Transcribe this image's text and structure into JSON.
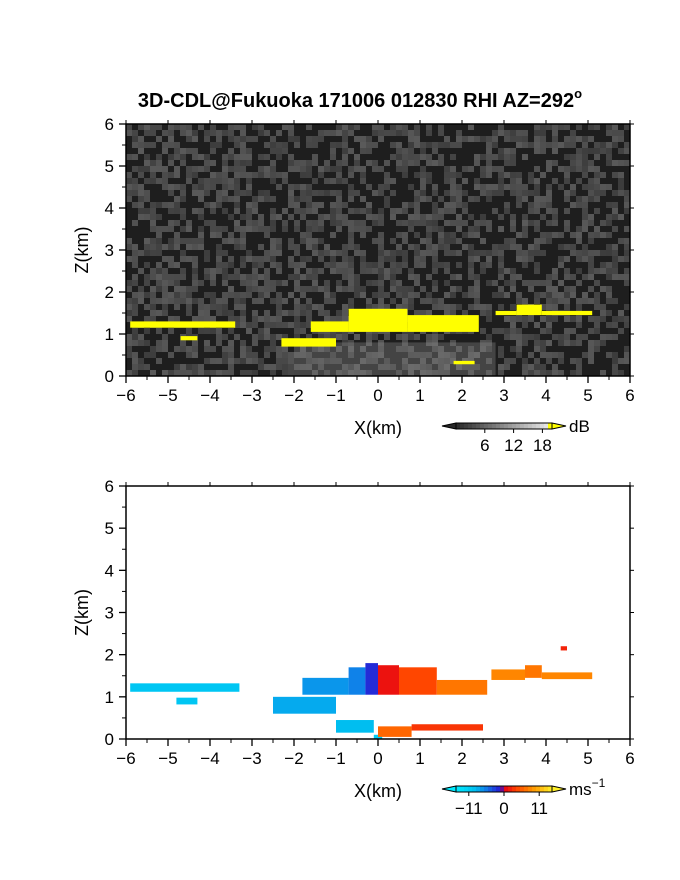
{
  "title": "3D-CDL@Fukuoka 171006 012830 RHI AZ=292",
  "title_superscript": "o",
  "chart_data": [
    {
      "type": "heatmap",
      "name": "reflectivity",
      "xlabel": "X(km)",
      "ylabel": "Z(km)",
      "xlim": [
        -6,
        6
      ],
      "ylim": [
        0,
        6
      ],
      "xticks": [
        -6,
        -5,
        -4,
        -3,
        -2,
        -1,
        0,
        1,
        2,
        3,
        4,
        5,
        6
      ],
      "yticks": [
        0,
        1,
        2,
        3,
        4,
        5,
        6
      ],
      "background": "noise",
      "colorbar": {
        "unit": "dB",
        "ticks": [
          "6",
          "12",
          "18"
        ],
        "range": [
          0,
          20
        ]
      },
      "echoes": [
        {
          "x0": -5.9,
          "x1": -3.4,
          "z0": 1.15,
          "z1": 1.3,
          "value": 20
        },
        {
          "x0": -4.7,
          "x1": -4.3,
          "z0": 0.85,
          "z1": 0.95,
          "value": 20
        },
        {
          "x0": -2.3,
          "x1": -1.0,
          "z0": 0.7,
          "z1": 0.9,
          "value": 20
        },
        {
          "x0": -1.6,
          "x1": -0.7,
          "z0": 1.05,
          "z1": 1.3,
          "value": 20
        },
        {
          "x0": -0.7,
          "x1": 0.7,
          "z0": 1.05,
          "z1": 1.6,
          "value": 20
        },
        {
          "x0": 0.7,
          "x1": 2.4,
          "z0": 1.05,
          "z1": 1.45,
          "value": 20
        },
        {
          "x0": 1.8,
          "x1": 2.3,
          "z0": 0.28,
          "z1": 0.36,
          "value": 20
        },
        {
          "x0": 2.8,
          "x1": 3.3,
          "z0": 1.45,
          "z1": 1.55,
          "value": 20
        },
        {
          "x0": 3.3,
          "x1": 3.9,
          "z0": 1.45,
          "z1": 1.7,
          "value": 20
        },
        {
          "x0": 3.9,
          "x1": 5.1,
          "z0": 1.45,
          "z1": 1.55,
          "value": 20
        }
      ]
    },
    {
      "type": "heatmap",
      "name": "doppler-velocity",
      "xlabel": "X(km)",
      "ylabel": "Z(km)",
      "xlim": [
        -6,
        6
      ],
      "ylim": [
        0,
        6
      ],
      "xticks": [
        -6,
        -5,
        -4,
        -3,
        -2,
        -1,
        0,
        1,
        2,
        3,
        4,
        5,
        6
      ],
      "yticks": [
        0,
        1,
        2,
        3,
        4,
        5,
        6
      ],
      "colorbar": {
        "unit": "ms",
        "unit_exponent": "−1",
        "ticks": [
          "−11",
          "0",
          "11"
        ],
        "range": [
          -15,
          15
        ]
      },
      "echoes": [
        {
          "x0": -5.9,
          "x1": -3.3,
          "z0": 1.12,
          "z1": 1.32,
          "value": -10
        },
        {
          "x0": -4.8,
          "x1": -4.3,
          "z0": 0.82,
          "z1": 0.98,
          "value": -10
        },
        {
          "x0": -2.5,
          "x1": -1.0,
          "z0": 0.6,
          "z1": 1.0,
          "value": -8
        },
        {
          "x0": -1.8,
          "x1": -0.7,
          "z0": 1.05,
          "z1": 1.45,
          "value": -7
        },
        {
          "x0": -0.7,
          "x1": -0.3,
          "z0": 1.05,
          "z1": 1.7,
          "value": -6
        },
        {
          "x0": -0.3,
          "x1": 0.0,
          "z0": 1.05,
          "z1": 1.8,
          "value": -2
        },
        {
          "x0": 0.0,
          "x1": 0.5,
          "z0": 1.05,
          "z1": 1.75,
          "value": 1
        },
        {
          "x0": 0.5,
          "x1": 1.4,
          "z0": 1.05,
          "z1": 1.7,
          "value": 4
        },
        {
          "x0": 1.4,
          "x1": 2.6,
          "z0": 1.05,
          "z1": 1.4,
          "value": 7
        },
        {
          "x0": -1.0,
          "x1": -0.1,
          "z0": 0.15,
          "z1": 0.45,
          "value": -9
        },
        {
          "x0": -0.1,
          "x1": 0.1,
          "z0": 0.0,
          "z1": 0.1,
          "value": -11
        },
        {
          "x0": 0.0,
          "x1": 0.8,
          "z0": 0.05,
          "z1": 0.3,
          "value": 6
        },
        {
          "x0": 0.8,
          "x1": 2.5,
          "z0": 0.2,
          "z1": 0.35,
          "value": 3
        },
        {
          "x0": 2.7,
          "x1": 3.5,
          "z0": 1.4,
          "z1": 1.65,
          "value": 8
        },
        {
          "x0": 3.5,
          "x1": 3.9,
          "z0": 1.45,
          "z1": 1.75,
          "value": 7
        },
        {
          "x0": 3.9,
          "x1": 5.1,
          "z0": 1.42,
          "z1": 1.58,
          "value": 8
        },
        {
          "x0": 4.35,
          "x1": 4.5,
          "z0": 2.1,
          "z1": 2.2,
          "value": 2
        }
      ]
    }
  ]
}
